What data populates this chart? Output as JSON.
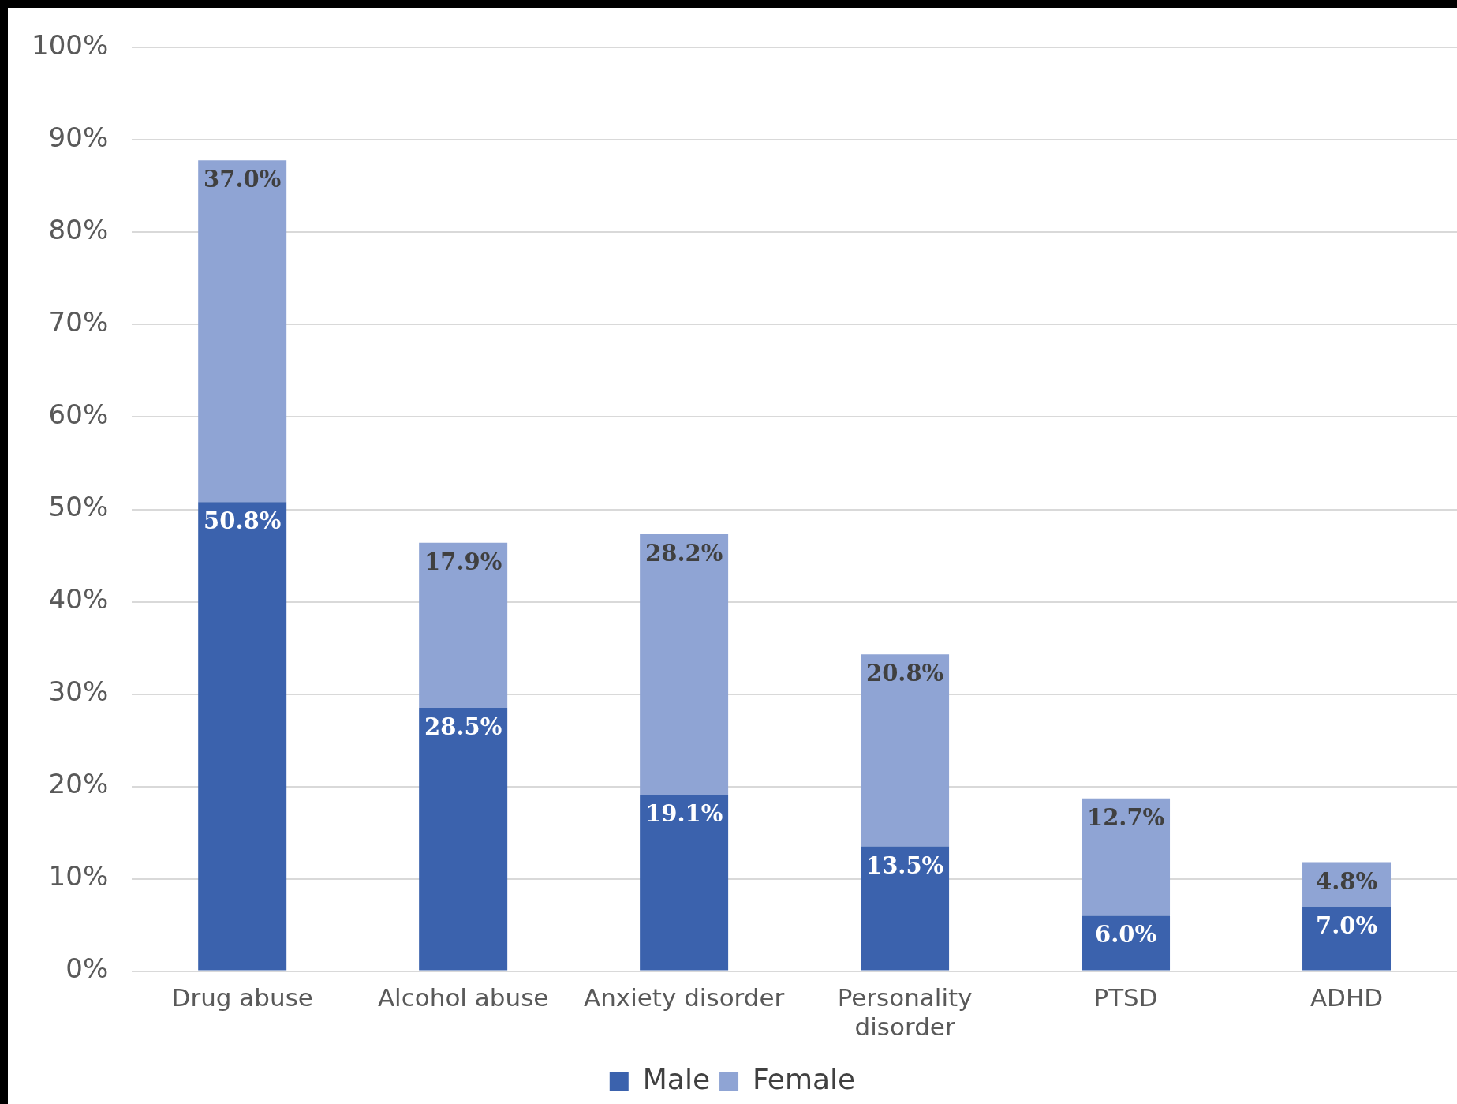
{
  "chart_data": {
    "type": "bar",
    "stacked": true,
    "categories": [
      "Drug abuse",
      "Alcohol abuse",
      "Anxiety disorder",
      "Personality disorder",
      "PTSD",
      "ADHD"
    ],
    "series": [
      {
        "name": "Male",
        "color": "#3b62ad",
        "values": [
          50.8,
          28.5,
          19.1,
          13.5,
          6.0,
          7.0
        ],
        "value_labels": [
          "50.8%",
          "28.5%",
          "19.1%",
          "13.5%",
          "6.0%",
          "7.0%"
        ]
      },
      {
        "name": "Female",
        "color": "#8fa4d4",
        "values": [
          37.0,
          17.9,
          28.2,
          20.8,
          12.7,
          4.8
        ],
        "value_labels": [
          "37.0%",
          "17.9%",
          "28.2%",
          "20.8%",
          "12.7%",
          "4.8%"
        ]
      }
    ],
    "ylim": [
      0,
      100
    ],
    "yticks": [
      {
        "value": 0,
        "label": "0%"
      },
      {
        "value": 10,
        "label": "10%"
      },
      {
        "value": 20,
        "label": "20%"
      },
      {
        "value": 30,
        "label": "30%"
      },
      {
        "value": 40,
        "label": "40%"
      },
      {
        "value": 50,
        "label": "50%"
      },
      {
        "value": 60,
        "label": "60%"
      },
      {
        "value": 70,
        "label": "70%"
      },
      {
        "value": 80,
        "label": "80%"
      },
      {
        "value": 90,
        "label": "90%"
      },
      {
        "value": 100,
        "label": "100%"
      }
    ],
    "grid": "y",
    "legend": "bottom"
  }
}
